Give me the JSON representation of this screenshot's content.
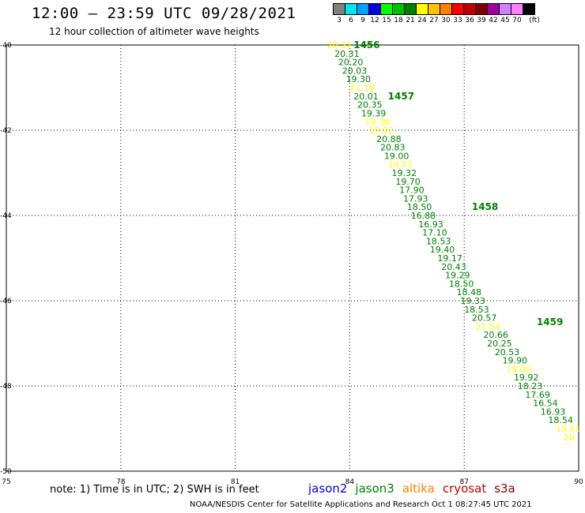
{
  "header": {
    "title": "12:00 — 23:59 UTC 09/28/2021",
    "subtitle": "12 hour collection of altimeter wave heights"
  },
  "legend": {
    "unit": "(ft)",
    "bins": [
      {
        "label": "3",
        "color": "#808080"
      },
      {
        "label": "6",
        "color": "#00e5ee"
      },
      {
        "label": "9",
        "color": "#00a0ff"
      },
      {
        "label": "12",
        "color": "#0000e0"
      },
      {
        "label": "15",
        "color": "#00ff00"
      },
      {
        "label": "18",
        "color": "#00c000"
      },
      {
        "label": "21",
        "color": "#008000"
      },
      {
        "label": "24",
        "color": "#ffff00"
      },
      {
        "label": "27",
        "color": "#ffc000"
      },
      {
        "label": "30",
        "color": "#ff8000"
      },
      {
        "label": "33",
        "color": "#ff0000"
      },
      {
        "label": "36",
        "color": "#c00000"
      },
      {
        "label": "39",
        "color": "#800000"
      },
      {
        "label": "42",
        "color": "#a000a0"
      },
      {
        "label": "45",
        "color": "#d080ff"
      },
      {
        "label": "70",
        "color": "#ff80ff"
      },
      {
        "label": "",
        "color": "#000000"
      }
    ]
  },
  "map": {
    "lon_range": [
      75,
      90
    ],
    "lat_range": [
      -50,
      -40
    ],
    "lon_ticks": [
      "75",
      "78",
      "81",
      "84",
      "87",
      "90"
    ],
    "lat_ticks": [
      "-40",
      "-42",
      "-44",
      "-46",
      "-48",
      "-50"
    ],
    "grid": true,
    "track_color_green": "#008000",
    "track_color_yellow": "#ffff00"
  },
  "track": {
    "time_labels": [
      {
        "text": "1456",
        "lon": 84.1,
        "lat": -40.0
      },
      {
        "text": "1457",
        "lon": 85.0,
        "lat": -41.2
      },
      {
        "text": "1458",
        "lon": 87.2,
        "lat": -43.8
      },
      {
        "text": "1459",
        "lon": 88.9,
        "lat": -46.5
      }
    ],
    "swh": [
      {
        "value": "20.52",
        "lon": 83.4,
        "lat": -40.0,
        "color": "yellow"
      },
      {
        "value": "20.31",
        "lon": 83.6,
        "lat": -40.2,
        "color": "green"
      },
      {
        "value": "20.20",
        "lon": 83.7,
        "lat": -40.4,
        "color": "green"
      },
      {
        "value": "20.03",
        "lon": 83.8,
        "lat": -40.6,
        "color": "green"
      },
      {
        "value": "19.30",
        "lon": 83.9,
        "lat": -40.8,
        "color": "green"
      },
      {
        "value": "21.18",
        "lon": 84.0,
        "lat": -41.0,
        "color": "yellow"
      },
      {
        "value": "20.01",
        "lon": 84.1,
        "lat": -41.2,
        "color": "green"
      },
      {
        "value": "20.35",
        "lon": 84.2,
        "lat": -41.4,
        "color": "green"
      },
      {
        "value": "19.39",
        "lon": 84.3,
        "lat": -41.6,
        "color": "green"
      },
      {
        "value": "19.36",
        "lon": 84.4,
        "lat": -41.8,
        "color": "yellow"
      },
      {
        "value": "19.02",
        "lon": 84.5,
        "lat": -42.0,
        "color": "yellow"
      },
      {
        "value": "20.88",
        "lon": 84.7,
        "lat": -42.2,
        "color": "green"
      },
      {
        "value": "20.83",
        "lon": 84.8,
        "lat": -42.4,
        "color": "green"
      },
      {
        "value": "19.00",
        "lon": 84.9,
        "lat": -42.6,
        "color": "green"
      },
      {
        "value": "19.51",
        "lon": 85.0,
        "lat": -42.8,
        "color": "yellow"
      },
      {
        "value": "19.32",
        "lon": 85.1,
        "lat": -43.0,
        "color": "green"
      },
      {
        "value": "19.70",
        "lon": 85.2,
        "lat": -43.2,
        "color": "green"
      },
      {
        "value": "17.90",
        "lon": 85.3,
        "lat": -43.4,
        "color": "green"
      },
      {
        "value": "17.93",
        "lon": 85.4,
        "lat": -43.6,
        "color": "green"
      },
      {
        "value": "18.50",
        "lon": 85.5,
        "lat": -43.8,
        "color": "green"
      },
      {
        "value": "16.88",
        "lon": 85.6,
        "lat": -44.0,
        "color": "green"
      },
      {
        "value": "16.93",
        "lon": 85.8,
        "lat": -44.2,
        "color": "green"
      },
      {
        "value": "17.10",
        "lon": 85.9,
        "lat": -44.4,
        "color": "green"
      },
      {
        "value": "18.53",
        "lon": 86.0,
        "lat": -44.6,
        "color": "green"
      },
      {
        "value": "19.40",
        "lon": 86.1,
        "lat": -44.8,
        "color": "green"
      },
      {
        "value": "19.17",
        "lon": 86.3,
        "lat": -45.0,
        "color": "green"
      },
      {
        "value": "20.43",
        "lon": 86.4,
        "lat": -45.2,
        "color": "green"
      },
      {
        "value": "19.29",
        "lon": 86.5,
        "lat": -45.4,
        "color": "green"
      },
      {
        "value": "18.50",
        "lon": 86.6,
        "lat": -45.6,
        "color": "green"
      },
      {
        "value": "18.48",
        "lon": 86.8,
        "lat": -45.8,
        "color": "green"
      },
      {
        "value": "19.33",
        "lon": 86.9,
        "lat": -46.0,
        "color": "green"
      },
      {
        "value": "18.53",
        "lon": 87.0,
        "lat": -46.2,
        "color": "green"
      },
      {
        "value": "20.57",
        "lon": 87.2,
        "lat": -46.4,
        "color": "green"
      },
      {
        "value": "21.54",
        "lon": 87.3,
        "lat": -46.6,
        "color": "yellow"
      },
      {
        "value": "20.66",
        "lon": 87.5,
        "lat": -46.8,
        "color": "green"
      },
      {
        "value": "20.25",
        "lon": 87.6,
        "lat": -47.0,
        "color": "green"
      },
      {
        "value": "20.53",
        "lon": 87.8,
        "lat": -47.2,
        "color": "green"
      },
      {
        "value": "19.90",
        "lon": 88.0,
        "lat": -47.4,
        "color": "green"
      },
      {
        "value": "18.00",
        "lon": 88.1,
        "lat": -47.6,
        "color": "yellow"
      },
      {
        "value": "19.92",
        "lon": 88.3,
        "lat": -47.8,
        "color": "green"
      },
      {
        "value": "18.23",
        "lon": 88.4,
        "lat": -48.0,
        "color": "green"
      },
      {
        "value": "17.69",
        "lon": 88.6,
        "lat": -48.2,
        "color": "green"
      },
      {
        "value": "16.54",
        "lon": 88.8,
        "lat": -48.4,
        "color": "green"
      },
      {
        "value": "16.93",
        "lon": 89.0,
        "lat": -48.6,
        "color": "green"
      },
      {
        "value": "18.54",
        "lon": 89.2,
        "lat": -48.8,
        "color": "green"
      },
      {
        "value": "19.51",
        "lon": 89.4,
        "lat": -49.0,
        "color": "yellow"
      },
      {
        "value": "20",
        "lon": 89.6,
        "lat": -49.2,
        "color": "yellow"
      }
    ]
  },
  "footer": {
    "note": "note: 1) Time is in UTC; 2) SWH is in feet",
    "satellites": [
      {
        "name": "jason2",
        "color": "#0000e0"
      },
      {
        "name": "jason3",
        "color": "#008000"
      },
      {
        "name": "altika",
        "color": "#ff8000"
      },
      {
        "name": "cryosat",
        "color": "#c00000"
      },
      {
        "name": "s3a",
        "color": "#800000"
      }
    ],
    "credit": "NOAA/NESDIS Center for Satellite Applications and Research   Oct  1 08:27:45 UTC 2021"
  }
}
